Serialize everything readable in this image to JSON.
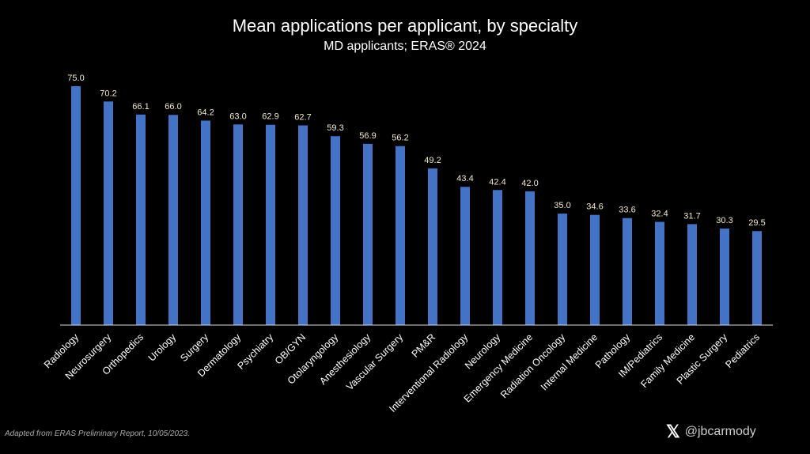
{
  "chart_data": {
    "type": "bar",
    "title": "Mean applications per applicant, by specialty",
    "subtitle": "MD applicants; ERAS® 2024",
    "xlabel": "",
    "ylabel": "",
    "ylim": [
      0,
      75
    ],
    "grid": false,
    "categories": [
      "Radiology",
      "Neurosurgery",
      "Orthopedics",
      "Urology",
      "Surgery",
      "Dermatology",
      "Psychiatry",
      "OB/GYN",
      "Otolaryngology",
      "Anesthesiology",
      "Vascular Surgery",
      "PM&R",
      "Interventional Radiology",
      "Neurology",
      "Emergency Medicine",
      "Radiation Oncology",
      "Internal Medicine",
      "Pathology",
      "IM/Pediatrics",
      "Family Medicine",
      "Plastic Surgery",
      "Pediatrics"
    ],
    "values": [
      75.0,
      70.2,
      66.1,
      66.0,
      64.2,
      63.0,
      62.9,
      62.7,
      59.3,
      56.9,
      56.2,
      49.2,
      43.4,
      42.4,
      42.0,
      35.0,
      34.6,
      33.6,
      32.4,
      31.7,
      30.3,
      29.5
    ],
    "bar_color": "#4472c4",
    "label_color": "#f2e8c9"
  },
  "footer": {
    "source": "Adapted from ERAS Preliminary Report, 10/05/2023.",
    "handle": "@jbcarmody",
    "x_logo": "𝕏"
  }
}
